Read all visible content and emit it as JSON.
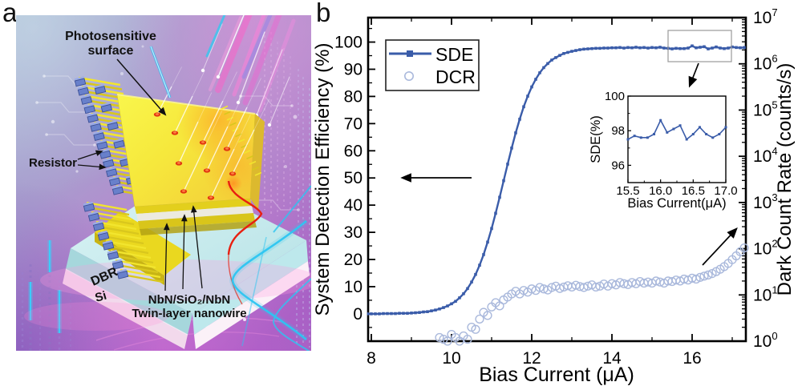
{
  "colors": {
    "sde": "#3a5ca9",
    "dcr": "#aab9dc",
    "background": "#ffffff",
    "accent_pink": "#ff5fc8",
    "accent_cyan": "#2cc5f1"
  },
  "panel_a": {
    "letter": "a",
    "labels": {
      "photosensitive_1": "Photosensitive",
      "photosensitive_2": "surface",
      "resistor": "Resistor",
      "dbr": "DBR",
      "si": "Si",
      "nanowire_1": "NbN/SiO₂/NbN",
      "nanowire_2": "Twin-layer nanowire"
    }
  },
  "panel_b": {
    "letter": "b"
  },
  "chart_data": {
    "type": "line+scatter",
    "xlabel": "Bias Current (μA)",
    "ylabel_left": "System Detection Efficiency (%)",
    "ylabel_right": "Dark Count Rate (counts/s)",
    "xlim": [
      7.92,
      17.34
    ],
    "ylim_left": [
      -10.05,
      109
    ],
    "ylim_right_log10": [
      0,
      7
    ],
    "grid": false,
    "x_ticks": {
      "major": [
        8,
        10,
        12,
        14,
        16
      ],
      "minor": [
        9,
        11,
        13,
        15,
        17
      ]
    },
    "y_left_ticks": {
      "major": [
        0,
        10,
        20,
        30,
        40,
        50,
        60,
        70,
        80,
        90,
        100
      ],
      "minor": [
        -5,
        5,
        15,
        25,
        35,
        45,
        55,
        65,
        75,
        85,
        95,
        105
      ]
    },
    "y_right_decades": [
      0,
      1,
      2,
      3,
      4,
      5,
      6,
      7
    ],
    "legend": [
      {
        "label": "SDE",
        "marker": "line-square"
      },
      {
        "label": "DCR",
        "marker": "open-circle"
      }
    ],
    "annotations": {
      "zoom_box_bias_range": [
        15.5,
        17.1
      ]
    },
    "series": [
      {
        "name": "SDE",
        "axis": "left",
        "x_start": 7.9,
        "x_step": 0.1,
        "values": [
          0,
          0,
          0,
          0,
          0.1,
          0.1,
          0.1,
          0.1,
          0.2,
          0.2,
          0.2,
          0.3,
          0.4,
          0.5,
          0.7,
          0.8,
          1.1,
          1.4,
          1.8,
          2.3,
          2.9,
          3.7,
          4.6,
          5.9,
          7.4,
          9.3,
          11.7,
          14.5,
          17.9,
          21.8,
          26.4,
          31.4,
          37,
          42.9,
          49,
          55.1,
          61,
          66.6,
          71.6,
          76.2,
          80.1,
          83.5,
          86.3,
          88.7,
          90.6,
          92.1,
          93.4,
          94.3,
          95.1,
          95.8,
          96.2,
          96.6,
          96.9,
          97.2,
          97.4,
          97.5,
          97.6,
          97.7,
          97.7,
          97.8,
          97.8,
          97.9,
          97.9,
          98,
          97.8,
          98,
          97.9,
          98.1,
          97.9,
          98,
          97.8,
          98,
          97.9,
          98.1,
          97.8,
          97.7,
          97.5,
          97.7,
          97.6,
          97.6,
          97.8,
          98.6,
          97.9,
          98.1,
          98.3,
          97.5,
          97.8,
          98.2,
          97.8,
          97.6,
          97.8,
          98.2,
          98,
          97.9,
          98
        ]
      },
      {
        "name": "DCR",
        "axis": "right",
        "x_start": 9.7,
        "x_step": 0.1,
        "values": [
          1.2,
          1.1,
          1.0,
          1.4,
          1.2,
          1.0,
          1.3,
          1.1,
          2.0,
          1.8,
          3.0,
          4.2,
          3.6,
          5.5,
          6.8,
          5.8,
          7.8,
          9.0,
          10.5,
          12,
          10.5,
          12.5,
          11.5,
          13.5,
          12.5,
          14.5,
          13.5,
          12.8,
          14.5,
          15.5,
          13.8,
          14.8,
          15.8,
          14.8,
          16.2,
          15.2,
          14.5,
          15.5,
          16.5,
          14.8,
          15.5,
          17.2,
          15.5,
          17.5,
          16.5,
          18.5,
          17.5,
          16.8,
          18.5,
          17.5,
          19.5,
          18,
          19,
          18,
          20,
          19,
          18,
          20,
          19.5,
          21,
          20,
          22,
          21,
          23,
          22,
          24,
          25.5,
          27,
          29,
          32,
          36,
          41,
          48,
          58,
          70,
          86,
          104
        ]
      }
    ],
    "inset": {
      "xlabel": "Bias Current(μA)",
      "ylabel": "SDE(%)",
      "xlim": [
        15.5,
        17.0
      ],
      "ylim": [
        95,
        100
      ],
      "x_ticks": {
        "major": [
          15.5,
          16.0,
          16.5,
          17.0
        ],
        "minor": [
          15.75,
          16.25,
          16.75
        ]
      },
      "y_ticks": {
        "major": [
          96,
          98,
          100
        ],
        "minor": [
          97,
          99
        ]
      },
      "x": [
        15.5,
        15.6,
        15.7,
        15.8,
        15.9,
        16,
        16.1,
        16.2,
        16.3,
        16.4,
        16.5,
        16.6,
        16.7,
        16.8,
        16.9,
        17
      ],
      "values": [
        97.5,
        97.7,
        97.6,
        97.6,
        97.8,
        98.6,
        97.9,
        98.1,
        98.3,
        97.5,
        97.8,
        98.2,
        97.8,
        97.6,
        97.8,
        98.2
      ]
    }
  }
}
